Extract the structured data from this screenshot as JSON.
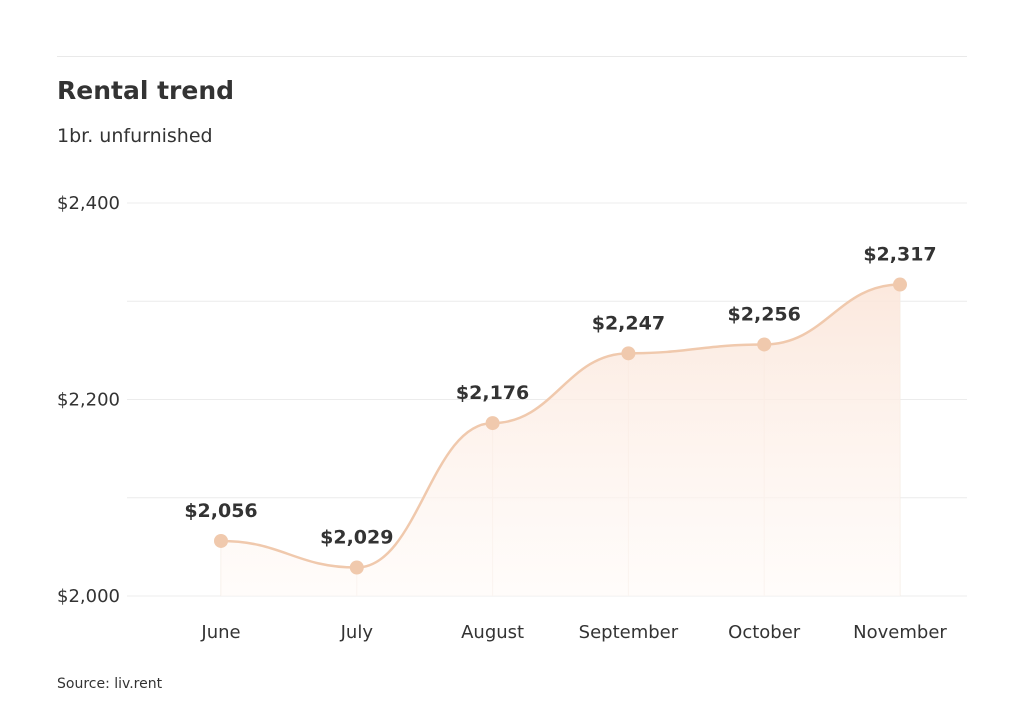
{
  "header": {
    "title": "Rental trend",
    "subtitle": "1br. unfurnished"
  },
  "footer": {
    "source": "Source: liv.rent"
  },
  "colors": {
    "line": "#f0c9ad",
    "marker": "#f0c9ad",
    "fill_top": "#fbe6da",
    "fill_bottom": "#fffaf7",
    "grid": "#ececec",
    "text": "#333333"
  },
  "chart_data": {
    "type": "area",
    "title": "Rental trend",
    "subtitle": "1br. unfurnished",
    "xlabel": "",
    "ylabel": "",
    "categories": [
      "June",
      "July",
      "August",
      "September",
      "October",
      "November"
    ],
    "series": [
      {
        "values": [
          2056,
          2029,
          2176,
          2247,
          2256,
          2317
        ]
      }
    ],
    "data_labels": [
      "$2,056",
      "$2,029",
      "$2,176",
      "$2,247",
      "$2,256",
      "$2,317"
    ],
    "ylim": [
      2000,
      2400
    ],
    "yticks": [
      2000,
      2200,
      2400
    ],
    "ytick_labels": [
      "$2,000",
      "$2,200",
      "$2,400"
    ],
    "grid": true,
    "legend": "none",
    "smooth": true
  }
}
